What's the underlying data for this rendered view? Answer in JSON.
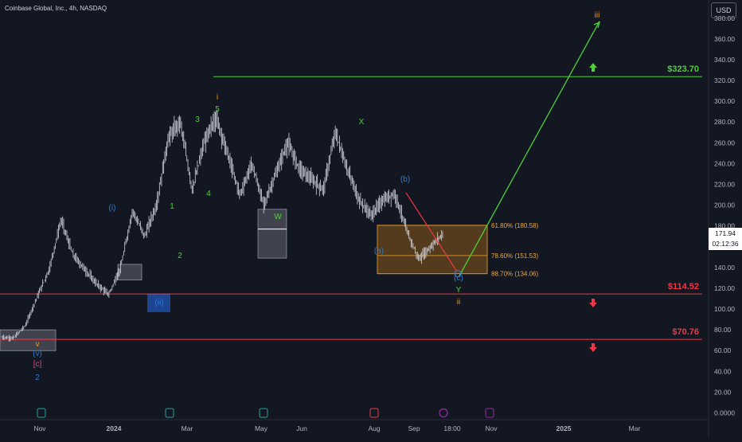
{
  "header": {
    "title": "Coinbase Global, Inc., 4h, NASDAQ",
    "currency": "USD"
  },
  "current": {
    "price": "171.94",
    "countdown": "02:12:36"
  },
  "chart_data": {
    "type": "line",
    "ylim": [
      0,
      390
    ],
    "y_ticks": [
      "0.0000",
      "20.00",
      "40.00",
      "60.00",
      "80.00",
      "100.00",
      "120.00",
      "140.00",
      "160.00",
      "180.00",
      "200.00",
      "220.00",
      "240.00",
      "260.00",
      "280.00",
      "300.00",
      "320.00",
      "340.00",
      "360.00",
      "380.00"
    ],
    "x_ticks": [
      "Nov",
      "2024",
      "Mar",
      "May",
      "Jun",
      "Aug",
      "Sep",
      "18:00",
      "Nov",
      "2025",
      "Mar"
    ],
    "price_path": [
      {
        "t": "Oct-2023",
        "y": 73
      },
      {
        "t": "Nov-2023",
        "y": 72
      },
      {
        "t": "Nov-2023",
        "y": 84
      },
      {
        "t": "Dec-2023",
        "y": 112
      },
      {
        "t": "Dec-2023",
        "y": 138
      },
      {
        "t": "Dec-2023",
        "y": 186
      },
      {
        "t": "Jan-2024",
        "y": 152
      },
      {
        "t": "Jan-2024",
        "y": 138
      },
      {
        "t": "Jan-2024",
        "y": 124
      },
      {
        "t": "Jan-2024",
        "y": 114
      },
      {
        "t": "Feb-2024",
        "y": 140
      },
      {
        "t": "Feb-2024",
        "y": 195
      },
      {
        "t": "Feb-2024",
        "y": 170
      },
      {
        "t": "Feb-2024",
        "y": 200
      },
      {
        "t": "Mar-2024",
        "y": 265
      },
      {
        "t": "Mar-2024",
        "y": 280
      },
      {
        "t": "Mar-2024",
        "y": 215
      },
      {
        "t": "Apr-2024",
        "y": 260
      },
      {
        "t": "Apr-2024",
        "y": 285
      },
      {
        "t": "Apr-2024",
        "y": 248
      },
      {
        "t": "Apr-2024",
        "y": 210
      },
      {
        "t": "May-2024",
        "y": 240
      },
      {
        "t": "May-2024",
        "y": 200
      },
      {
        "t": "May-2024",
        "y": 230
      },
      {
        "t": "Jun-2024",
        "y": 260
      },
      {
        "t": "Jun-2024",
        "y": 235
      },
      {
        "t": "Jun-2024",
        "y": 225
      },
      {
        "t": "Jul-2024",
        "y": 215
      },
      {
        "t": "Jul-2024",
        "y": 270
      },
      {
        "t": "Jul-2024",
        "y": 235
      },
      {
        "t": "Aug-2024",
        "y": 205
      },
      {
        "t": "Aug-2024",
        "y": 190
      },
      {
        "t": "Aug-2024",
        "y": 205
      },
      {
        "t": "Aug-2024",
        "y": 211
      },
      {
        "t": "Aug-2024",
        "y": 175
      },
      {
        "t": "Sep-2024",
        "y": 148
      },
      {
        "t": "Sep-2024",
        "y": 160
      },
      {
        "t": "Sep-2024",
        "y": 172
      }
    ],
    "levels": [
      {
        "label": "$323.70",
        "value": 323.7,
        "color": "#4cd137"
      },
      {
        "label": "$114.52",
        "value": 114.52,
        "color": "#f23645"
      },
      {
        "label": "$70.76",
        "value": 70.76,
        "color": "#f23645"
      }
    ],
    "fib": [
      {
        "label": "61.80% (180.58)",
        "value": 180.58
      },
      {
        "label": "78.60% (151.53)",
        "value": 151.53
      },
      {
        "label": "88.70% (134.06)",
        "value": 134.06
      }
    ],
    "wave_labels": [
      {
        "text": "i",
        "color": "#f7931a"
      },
      {
        "text": "5",
        "color": "#4cd137"
      },
      {
        "text": "3",
        "color": "#4cd137"
      },
      {
        "text": "4",
        "color": "#4cd137"
      },
      {
        "text": "1",
        "color": "#4cd137"
      },
      {
        "text": "2",
        "color": "#4cd137"
      },
      {
        "text": "(i)",
        "color": "#2f7dd1"
      },
      {
        "text": "(ii)",
        "color": "#2f7dd1"
      },
      {
        "text": "W",
        "color": "#4cd137"
      },
      {
        "text": "X",
        "color": "#4cd137"
      },
      {
        "text": "(b)",
        "color": "#2f7dd1"
      },
      {
        "text": "(a)",
        "color": "#2f7dd1"
      },
      {
        "text": "(c)",
        "color": "#2f7dd1"
      },
      {
        "text": "Y",
        "color": "#4cd137"
      },
      {
        "text": "ii",
        "color": "#f7931a"
      },
      {
        "text": "iii",
        "color": "#f7931a"
      },
      {
        "text": "v",
        "color": "#f7931a"
      },
      {
        "text": "(v)",
        "color": "#2f7dd1"
      },
      {
        "text": "[c]",
        "color": "#e0457b"
      },
      {
        "text": "2",
        "color": "#2f7dd1"
      }
    ],
    "colors": {
      "background": "#131722",
      "candles": "#d1d4dc",
      "target_line": "#4cd137",
      "stop_line": "#f23645",
      "fib_zone": "#c98b2c",
      "down_arrow": "#f23645",
      "up_arrow": "#4cd137"
    },
    "grid": false,
    "axis_position": "right"
  }
}
